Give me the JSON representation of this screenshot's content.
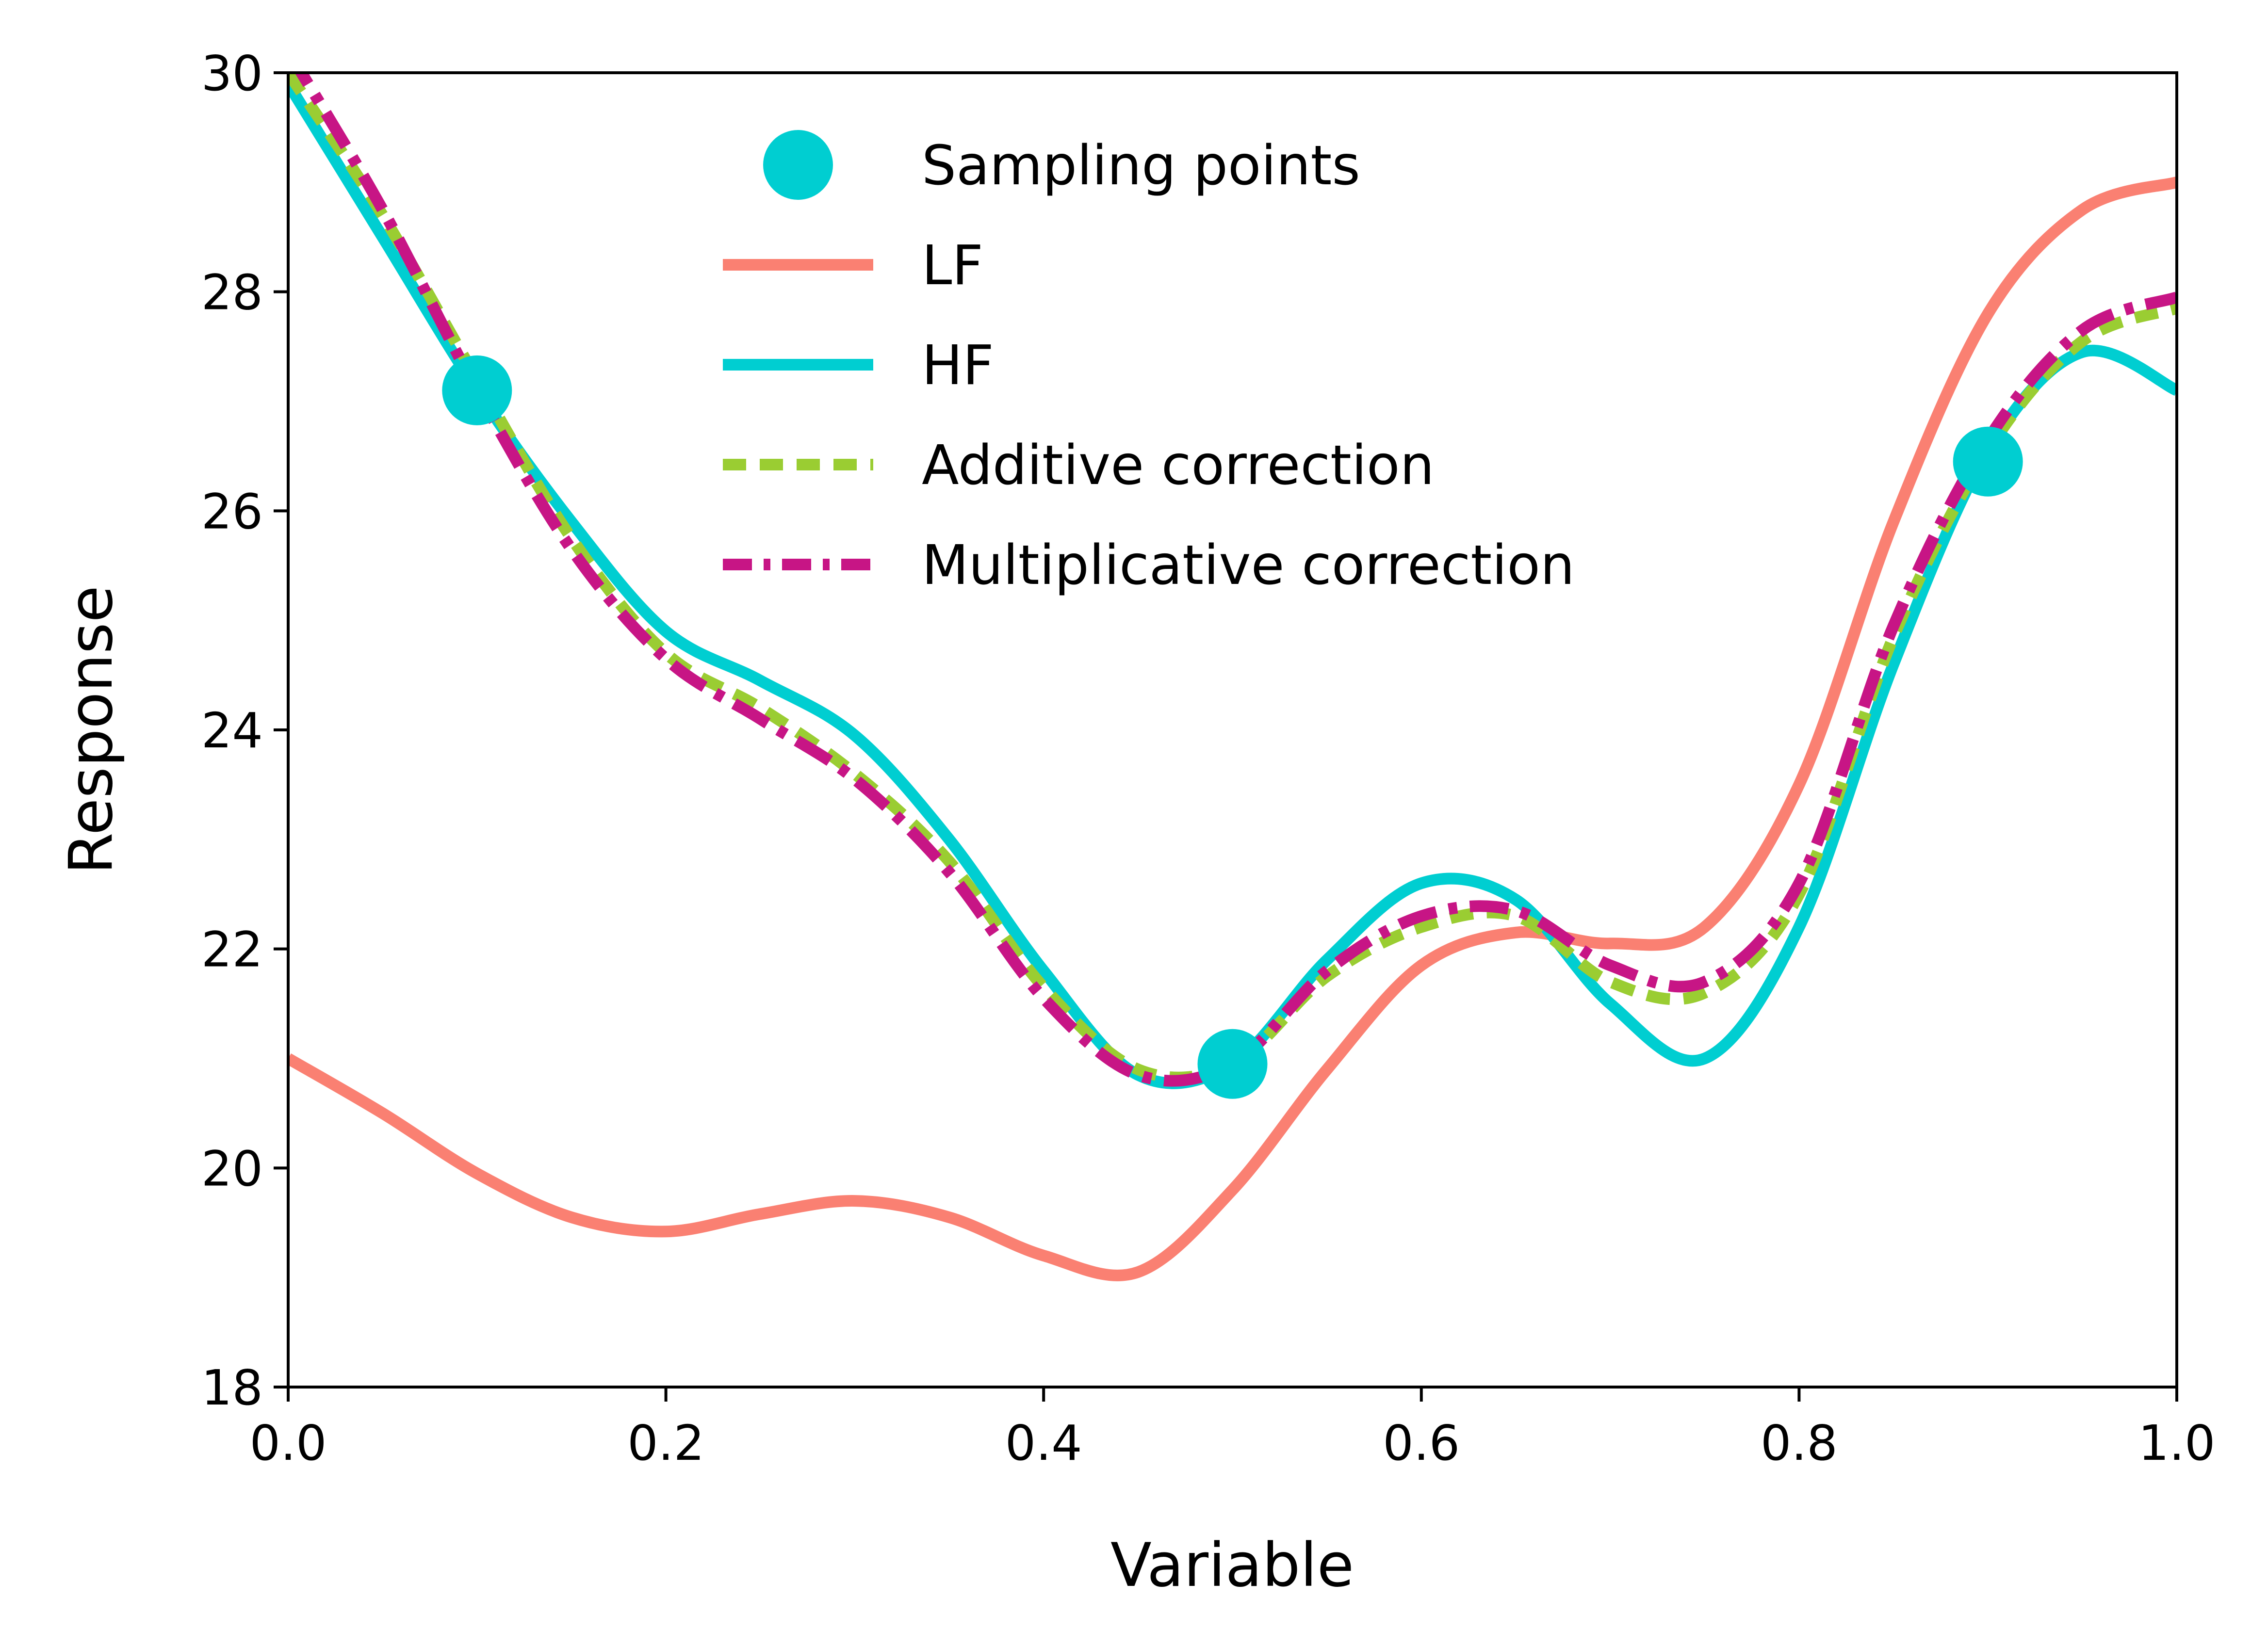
{
  "chart_data": {
    "type": "line",
    "xlabel": "Variable",
    "ylabel": "Response",
    "xlim": [
      0.0,
      1.0
    ],
    "ylim": [
      18,
      30
    ],
    "xticks": [
      "0.0",
      "0.2",
      "0.4",
      "0.6",
      "0.8",
      "1.0"
    ],
    "yticks": [
      "18",
      "20",
      "22",
      "24",
      "26",
      "28",
      "30"
    ],
    "grid": false,
    "legend_position": "top-center",
    "x": [
      0.0,
      0.05,
      0.1,
      0.15,
      0.2,
      0.25,
      0.3,
      0.35,
      0.4,
      0.45,
      0.5,
      0.55,
      0.6,
      0.65,
      0.7,
      0.75,
      0.8,
      0.85,
      0.9,
      0.95,
      1.0
    ],
    "series": [
      {
        "name": "LF",
        "style": "solid",
        "color": "#FA8072",
        "values": [
          21.0,
          20.5,
          19.95,
          19.55,
          19.42,
          19.58,
          19.7,
          19.55,
          19.2,
          19.05,
          19.8,
          20.9,
          21.85,
          22.15,
          22.05,
          22.2,
          23.5,
          25.9,
          27.8,
          28.75,
          29.0
        ]
      },
      {
        "name": "HF",
        "style": "solid",
        "color": "#00CED1",
        "values": [
          29.9,
          28.5,
          27.1,
          25.9,
          24.9,
          24.45,
          23.95,
          23.0,
          21.8,
          20.85,
          20.95,
          21.9,
          22.6,
          22.45,
          21.5,
          21.0,
          22.2,
          24.6,
          26.55,
          27.45,
          27.1
        ]
      },
      {
        "name": "Additive correction",
        "style": "dashed",
        "color": "#9ACD32",
        "values": [
          30.0,
          28.7,
          27.2,
          25.75,
          24.7,
          24.2,
          23.6,
          22.8,
          21.65,
          20.9,
          20.95,
          21.75,
          22.2,
          22.3,
          21.7,
          21.6,
          22.5,
          24.85,
          26.55,
          27.55,
          27.85
        ]
      },
      {
        "name": "Multiplicative correction",
        "style": "dash-dot",
        "color": "#C71585",
        "values": [
          30.2,
          28.75,
          27.1,
          25.65,
          24.65,
          24.1,
          23.55,
          22.7,
          21.55,
          20.85,
          20.95,
          21.8,
          22.3,
          22.35,
          21.85,
          21.7,
          22.6,
          24.95,
          26.65,
          27.65,
          27.95
        ]
      }
    ],
    "scatter": {
      "name": "Sampling points",
      "color": "#00CED1",
      "points": [
        {
          "x": 0.1,
          "y": 27.1
        },
        {
          "x": 0.5,
          "y": 20.95
        },
        {
          "x": 0.9,
          "y": 26.45
        }
      ]
    },
    "legend": [
      {
        "label": "Sampling points",
        "kind": "marker",
        "color": "#00CED1"
      },
      {
        "label": "LF",
        "kind": "solid",
        "color": "#FA8072"
      },
      {
        "label": "HF",
        "kind": "solid",
        "color": "#00CED1"
      },
      {
        "label": "Additive correction",
        "kind": "dashed",
        "color": "#9ACD32"
      },
      {
        "label": "Multiplicative correction",
        "kind": "dash-dot",
        "color": "#C71585"
      }
    ]
  }
}
